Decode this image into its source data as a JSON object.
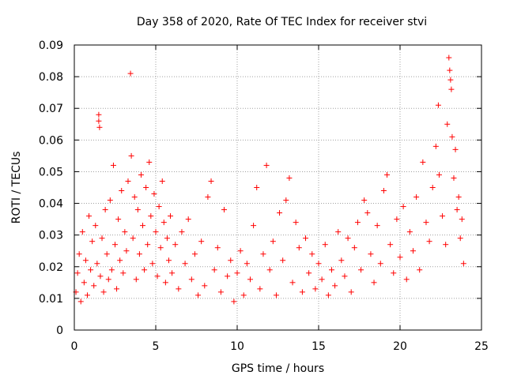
{
  "chart_data": {
    "type": "scatter",
    "title": "Day 358 of 2020, Rate Of TEC Index for receiver stvi",
    "xlabel": "GPS time / hours",
    "ylabel": "ROTI / TECUs",
    "xlim": [
      0,
      25
    ],
    "ylim": [
      0,
      0.09
    ],
    "xticks": [
      "0",
      "5",
      "10",
      "15",
      "20",
      "25"
    ],
    "yticks": [
      "0",
      "0.01",
      "0.02",
      "0.03",
      "0.04",
      "0.05",
      "0.06",
      "0.07",
      "0.08",
      "0.09"
    ],
    "grid": true,
    "marker": "plus",
    "color": "#ff0000",
    "series": [
      {
        "points": [
          [
            0.1,
            0.012
          ],
          [
            0.2,
            0.018
          ],
          [
            0.3,
            0.024
          ],
          [
            0.4,
            0.009
          ],
          [
            0.5,
            0.031
          ],
          [
            0.6,
            0.015
          ],
          [
            0.7,
            0.022
          ],
          [
            0.8,
            0.011
          ],
          [
            0.9,
            0.036
          ],
          [
            1.0,
            0.019
          ],
          [
            1.1,
            0.028
          ],
          [
            1.2,
            0.014
          ],
          [
            1.3,
            0.033
          ],
          [
            1.4,
            0.021
          ],
          [
            1.5,
            0.068
          ],
          [
            1.5,
            0.066
          ],
          [
            1.55,
            0.064
          ],
          [
            1.6,
            0.017
          ],
          [
            1.7,
            0.029
          ],
          [
            1.8,
            0.012
          ],
          [
            1.9,
            0.038
          ],
          [
            2.0,
            0.024
          ],
          [
            2.1,
            0.016
          ],
          [
            2.2,
            0.041
          ],
          [
            2.3,
            0.019
          ],
          [
            2.4,
            0.052
          ],
          [
            2.5,
            0.027
          ],
          [
            2.6,
            0.013
          ],
          [
            2.7,
            0.035
          ],
          [
            2.8,
            0.022
          ],
          [
            2.9,
            0.044
          ],
          [
            3.0,
            0.018
          ],
          [
            3.1,
            0.031
          ],
          [
            3.2,
            0.025
          ],
          [
            3.3,
            0.047
          ],
          [
            3.45,
            0.081
          ],
          [
            3.5,
            0.055
          ],
          [
            3.6,
            0.029
          ],
          [
            3.7,
            0.042
          ],
          [
            3.8,
            0.016
          ],
          [
            3.9,
            0.038
          ],
          [
            4.0,
            0.024
          ],
          [
            4.1,
            0.049
          ],
          [
            4.2,
            0.033
          ],
          [
            4.3,
            0.019
          ],
          [
            4.4,
            0.045
          ],
          [
            4.5,
            0.027
          ],
          [
            4.6,
            0.053
          ],
          [
            4.7,
            0.036
          ],
          [
            4.8,
            0.021
          ],
          [
            4.9,
            0.043
          ],
          [
            5.0,
            0.031
          ],
          [
            5.1,
            0.017
          ],
          [
            5.2,
            0.039
          ],
          [
            5.3,
            0.026
          ],
          [
            5.4,
            0.047
          ],
          [
            5.5,
            0.034
          ],
          [
            5.6,
            0.015
          ],
          [
            5.7,
            0.029
          ],
          [
            5.8,
            0.022
          ],
          [
            5.9,
            0.036
          ],
          [
            6.0,
            0.018
          ],
          [
            6.2,
            0.027
          ],
          [
            6.4,
            0.013
          ],
          [
            6.6,
            0.031
          ],
          [
            6.8,
            0.021
          ],
          [
            7.0,
            0.035
          ],
          [
            7.2,
            0.016
          ],
          [
            7.4,
            0.024
          ],
          [
            7.6,
            0.011
          ],
          [
            7.8,
            0.028
          ],
          [
            8.0,
            0.014
          ],
          [
            8.2,
            0.042
          ],
          [
            8.4,
            0.047
          ],
          [
            8.6,
            0.019
          ],
          [
            8.8,
            0.026
          ],
          [
            9.0,
            0.012
          ],
          [
            9.2,
            0.038
          ],
          [
            9.4,
            0.017
          ],
          [
            9.6,
            0.022
          ],
          [
            9.8,
            0.009
          ],
          [
            10.0,
            0.018
          ],
          [
            10.2,
            0.025
          ],
          [
            10.4,
            0.011
          ],
          [
            10.6,
            0.021
          ],
          [
            10.8,
            0.016
          ],
          [
            11.0,
            0.033
          ],
          [
            11.2,
            0.045
          ],
          [
            11.4,
            0.013
          ],
          [
            11.6,
            0.024
          ],
          [
            11.8,
            0.052
          ],
          [
            12.0,
            0.019
          ],
          [
            12.2,
            0.028
          ],
          [
            12.4,
            0.011
          ],
          [
            12.6,
            0.037
          ],
          [
            12.8,
            0.022
          ],
          [
            13.0,
            0.041
          ],
          [
            13.2,
            0.048
          ],
          [
            13.4,
            0.015
          ],
          [
            13.6,
            0.034
          ],
          [
            13.8,
            0.026
          ],
          [
            14.0,
            0.012
          ],
          [
            14.2,
            0.029
          ],
          [
            14.4,
            0.018
          ],
          [
            14.6,
            0.024
          ],
          [
            14.8,
            0.013
          ],
          [
            15.0,
            0.021
          ],
          [
            15.2,
            0.016
          ],
          [
            15.4,
            0.027
          ],
          [
            15.6,
            0.011
          ],
          [
            15.8,
            0.019
          ],
          [
            16.0,
            0.014
          ],
          [
            16.2,
            0.031
          ],
          [
            16.4,
            0.022
          ],
          [
            16.6,
            0.017
          ],
          [
            16.8,
            0.029
          ],
          [
            17.0,
            0.012
          ],
          [
            17.2,
            0.026
          ],
          [
            17.4,
            0.034
          ],
          [
            17.6,
            0.019
          ],
          [
            17.8,
            0.041
          ],
          [
            18.0,
            0.037
          ],
          [
            18.2,
            0.024
          ],
          [
            18.4,
            0.015
          ],
          [
            18.6,
            0.033
          ],
          [
            18.8,
            0.021
          ],
          [
            19.0,
            0.044
          ],
          [
            19.2,
            0.049
          ],
          [
            19.4,
            0.027
          ],
          [
            19.6,
            0.018
          ],
          [
            19.8,
            0.035
          ],
          [
            20.0,
            0.023
          ],
          [
            20.2,
            0.039
          ],
          [
            20.4,
            0.016
          ],
          [
            20.6,
            0.031
          ],
          [
            20.8,
            0.025
          ],
          [
            21.0,
            0.042
          ],
          [
            21.2,
            0.019
          ],
          [
            21.4,
            0.053
          ],
          [
            21.6,
            0.034
          ],
          [
            21.8,
            0.028
          ],
          [
            22.0,
            0.045
          ],
          [
            22.2,
            0.058
          ],
          [
            22.35,
            0.071
          ],
          [
            22.4,
            0.049
          ],
          [
            22.6,
            0.036
          ],
          [
            22.8,
            0.027
          ],
          [
            22.9,
            0.065
          ],
          [
            23.0,
            0.086
          ],
          [
            23.05,
            0.082
          ],
          [
            23.1,
            0.079
          ],
          [
            23.15,
            0.076
          ],
          [
            23.2,
            0.061
          ],
          [
            23.3,
            0.048
          ],
          [
            23.4,
            0.057
          ],
          [
            23.5,
            0.038
          ],
          [
            23.6,
            0.042
          ],
          [
            23.7,
            0.029
          ],
          [
            23.8,
            0.035
          ],
          [
            23.9,
            0.021
          ]
        ]
      }
    ]
  }
}
